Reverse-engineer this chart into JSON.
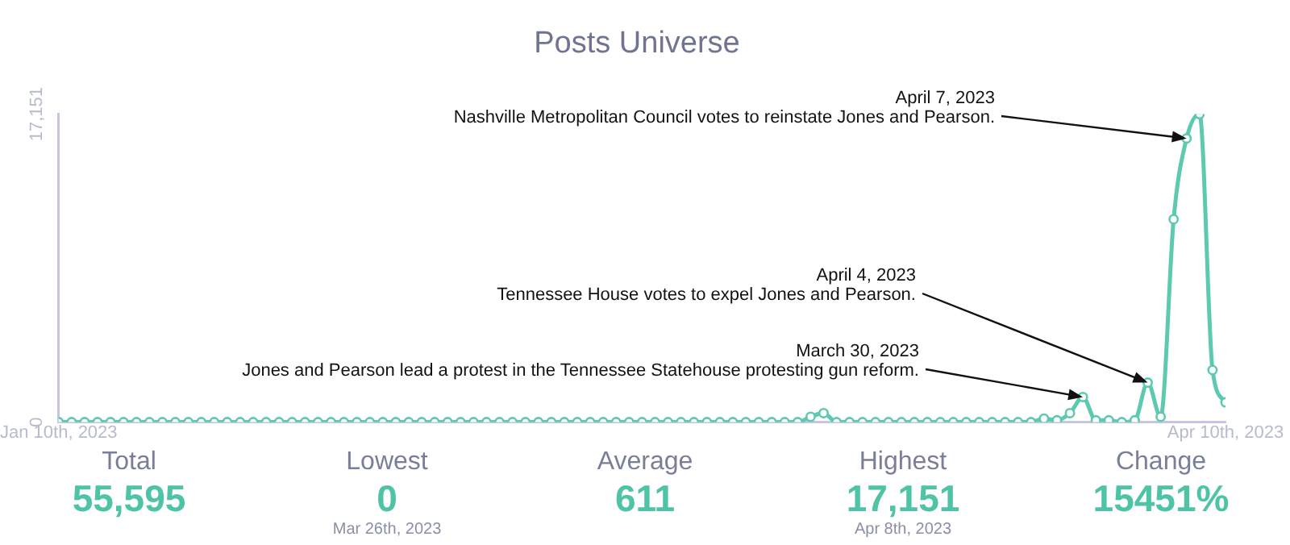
{
  "chart_data": {
    "type": "line",
    "title": "Posts Universe",
    "x": [
      "2023-01-10",
      "2023-01-11",
      "2023-01-12",
      "2023-01-13",
      "2023-01-14",
      "2023-01-15",
      "2023-01-16",
      "2023-01-17",
      "2023-01-18",
      "2023-01-19",
      "2023-01-20",
      "2023-01-21",
      "2023-01-22",
      "2023-01-23",
      "2023-01-24",
      "2023-01-25",
      "2023-01-26",
      "2023-01-27",
      "2023-01-28",
      "2023-01-29",
      "2023-01-30",
      "2023-01-31",
      "2023-02-01",
      "2023-02-02",
      "2023-02-03",
      "2023-02-04",
      "2023-02-05",
      "2023-02-06",
      "2023-02-07",
      "2023-02-08",
      "2023-02-09",
      "2023-02-10",
      "2023-02-11",
      "2023-02-12",
      "2023-02-13",
      "2023-02-14",
      "2023-02-15",
      "2023-02-16",
      "2023-02-17",
      "2023-02-18",
      "2023-02-19",
      "2023-02-20",
      "2023-02-21",
      "2023-02-22",
      "2023-02-23",
      "2023-02-24",
      "2023-02-25",
      "2023-02-26",
      "2023-02-27",
      "2023-02-28",
      "2023-03-01",
      "2023-03-02",
      "2023-03-03",
      "2023-03-04",
      "2023-03-05",
      "2023-03-06",
      "2023-03-07",
      "2023-03-08",
      "2023-03-09",
      "2023-03-10",
      "2023-03-11",
      "2023-03-12",
      "2023-03-13",
      "2023-03-14",
      "2023-03-15",
      "2023-03-16",
      "2023-03-17",
      "2023-03-18",
      "2023-03-19",
      "2023-03-20",
      "2023-03-21",
      "2023-03-22",
      "2023-03-23",
      "2023-03-24",
      "2023-03-25",
      "2023-03-26",
      "2023-03-27",
      "2023-03-28",
      "2023-03-29",
      "2023-03-30",
      "2023-03-31",
      "2023-04-01",
      "2023-04-02",
      "2023-04-03",
      "2023-04-04",
      "2023-04-05",
      "2023-04-06",
      "2023-04-07",
      "2023-04-08",
      "2023-04-09",
      "2023-04-10"
    ],
    "series": [
      {
        "color": "#5cc9b0",
        "values": [
          0,
          0,
          0,
          0,
          0,
          0,
          0,
          0,
          0,
          0,
          0,
          0,
          0,
          0,
          0,
          0,
          0,
          0,
          0,
          0,
          0,
          0,
          0,
          0,
          0,
          0,
          0,
          0,
          0,
          0,
          0,
          0,
          0,
          0,
          0,
          0,
          0,
          0,
          0,
          0,
          0,
          0,
          0,
          0,
          0,
          0,
          0,
          0,
          0,
          0,
          0,
          0,
          0,
          0,
          0,
          0,
          0,
          0,
          300,
          500,
          0,
          0,
          0,
          0,
          0,
          0,
          0,
          0,
          0,
          0,
          0,
          0,
          0,
          0,
          0,
          0,
          200,
          100,
          500,
          1400,
          100,
          100,
          0,
          100,
          2200,
          300,
          11300,
          15800,
          17151,
          2900,
          1100
        ]
      }
    ],
    "xlim": [
      "2023-01-10",
      "2023-04-10"
    ],
    "xticks": [
      {
        "value": "2023-01-10",
        "label": "Jan 10th, 2023"
      },
      {
        "value": "2023-04-10",
        "label": "Apr 10th, 2023"
      }
    ],
    "ylim": [
      0,
      17151
    ],
    "yticks": [
      0,
      {
        "value": 17151,
        "label": "17,151"
      }
    ],
    "grid": false,
    "legend": false,
    "marker": "circle",
    "line_style": "solid",
    "annotations": [
      {
        "text": "April 7, 2023\nNashville Metropolitan Council votes to reinstate Jones and Pearson.",
        "x": "2023-04-07",
        "y": 15800
      },
      {
        "text": "April 4, 2023\nTennessee House votes to expel Jones and Pearson.",
        "x": "2023-04-04",
        "y": 2200
      },
      {
        "text": "March 30, 2023\nJones and Pearson lead a protest in the Tennessee Statehouse protesting gun reform.",
        "x": "2023-03-30",
        "y": 1400
      },
      "Total\n55,595",
      "Lowest\n0\nMar 26th, 2023",
      "Average\n611",
      "Highest\n17,151\nApr 8th, 2023",
      "Change\n15451%"
    ]
  }
}
